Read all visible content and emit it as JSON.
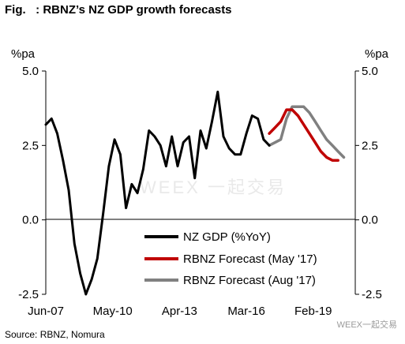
{
  "figure": {
    "title": "Fig.   : RBNZ’s NZ GDP growth forecasts",
    "source": "Source: RBNZ, Nomura",
    "watermark_center": "WEEX 一起交易",
    "watermark_corner": "WEEX一起交易"
  },
  "chart_data": {
    "type": "line",
    "title": "RBNZ’s NZ GDP growth forecasts",
    "ylabel_left": "%pa",
    "ylabel_right": "%pa",
    "x_range": [
      "2007-06",
      "2020-12"
    ],
    "ylim": [
      -2.5,
      5.0
    ],
    "yticks": [
      -2.5,
      0.0,
      2.5,
      5.0
    ],
    "ytick_labels": [
      "-2.5",
      "0.0",
      "2.5",
      "5.0"
    ],
    "xticks": [
      "2007-06",
      "2010-05",
      "2013-04",
      "2016-03",
      "2019-02"
    ],
    "xtick_labels": [
      "Jun-07",
      "May-10",
      "Apr-13",
      "Mar-16",
      "Feb-19"
    ],
    "grid": false,
    "legend_position": "bottom-center",
    "series": [
      {
        "name": "NZ GDP (%YoY)",
        "color": "#000000",
        "points": [
          [
            "2007-06",
            3.2
          ],
          [
            "2007-09",
            3.4
          ],
          [
            "2007-12",
            2.9
          ],
          [
            "2008-03",
            2.0
          ],
          [
            "2008-06",
            1.0
          ],
          [
            "2008-09",
            -0.8
          ],
          [
            "2008-12",
            -1.8
          ],
          [
            "2009-03",
            -2.5
          ],
          [
            "2009-06",
            -2.0
          ],
          [
            "2009-09",
            -1.3
          ],
          [
            "2009-12",
            0.2
          ],
          [
            "2010-03",
            1.8
          ],
          [
            "2010-06",
            2.7
          ],
          [
            "2010-09",
            2.2
          ],
          [
            "2010-12",
            0.4
          ],
          [
            "2011-03",
            1.2
          ],
          [
            "2011-06",
            0.9
          ],
          [
            "2011-09",
            1.7
          ],
          [
            "2011-12",
            3.0
          ],
          [
            "2012-03",
            2.8
          ],
          [
            "2012-06",
            2.5
          ],
          [
            "2012-09",
            1.8
          ],
          [
            "2012-12",
            2.8
          ],
          [
            "2013-03",
            1.8
          ],
          [
            "2013-06",
            2.6
          ],
          [
            "2013-09",
            2.8
          ],
          [
            "2013-12",
            1.4
          ],
          [
            "2014-03",
            3.0
          ],
          [
            "2014-06",
            2.4
          ],
          [
            "2014-09",
            3.3
          ],
          [
            "2014-12",
            4.3
          ],
          [
            "2015-03",
            2.8
          ],
          [
            "2015-06",
            2.4
          ],
          [
            "2015-09",
            2.2
          ],
          [
            "2015-12",
            2.2
          ],
          [
            "2016-03",
            2.9
          ],
          [
            "2016-06",
            3.5
          ],
          [
            "2016-09",
            3.4
          ],
          [
            "2016-12",
            2.7
          ],
          [
            "2017-03",
            2.5
          ]
        ]
      },
      {
        "name": "RBNZ Forecast (May '17)",
        "color": "#c00000",
        "points": [
          [
            "2017-03",
            2.9
          ],
          [
            "2017-06",
            3.1
          ],
          [
            "2017-09",
            3.3
          ],
          [
            "2017-12",
            3.7
          ],
          [
            "2018-03",
            3.7
          ],
          [
            "2018-06",
            3.5
          ],
          [
            "2018-09",
            3.2
          ],
          [
            "2018-12",
            2.9
          ],
          [
            "2019-03",
            2.6
          ],
          [
            "2019-06",
            2.3
          ],
          [
            "2019-09",
            2.1
          ],
          [
            "2019-12",
            2.0
          ],
          [
            "2020-03",
            2.0
          ]
        ]
      },
      {
        "name": "RBNZ Forecast (Aug '17)",
        "color": "#808080",
        "points": [
          [
            "2017-03",
            2.5
          ],
          [
            "2017-06",
            2.6
          ],
          [
            "2017-09",
            2.7
          ],
          [
            "2017-12",
            3.4
          ],
          [
            "2018-03",
            3.8
          ],
          [
            "2018-06",
            3.8
          ],
          [
            "2018-09",
            3.8
          ],
          [
            "2018-12",
            3.6
          ],
          [
            "2019-03",
            3.3
          ],
          [
            "2019-06",
            3.0
          ],
          [
            "2019-09",
            2.7
          ],
          [
            "2019-12",
            2.5
          ],
          [
            "2020-03",
            2.3
          ],
          [
            "2020-06",
            2.1
          ]
        ]
      }
    ]
  }
}
